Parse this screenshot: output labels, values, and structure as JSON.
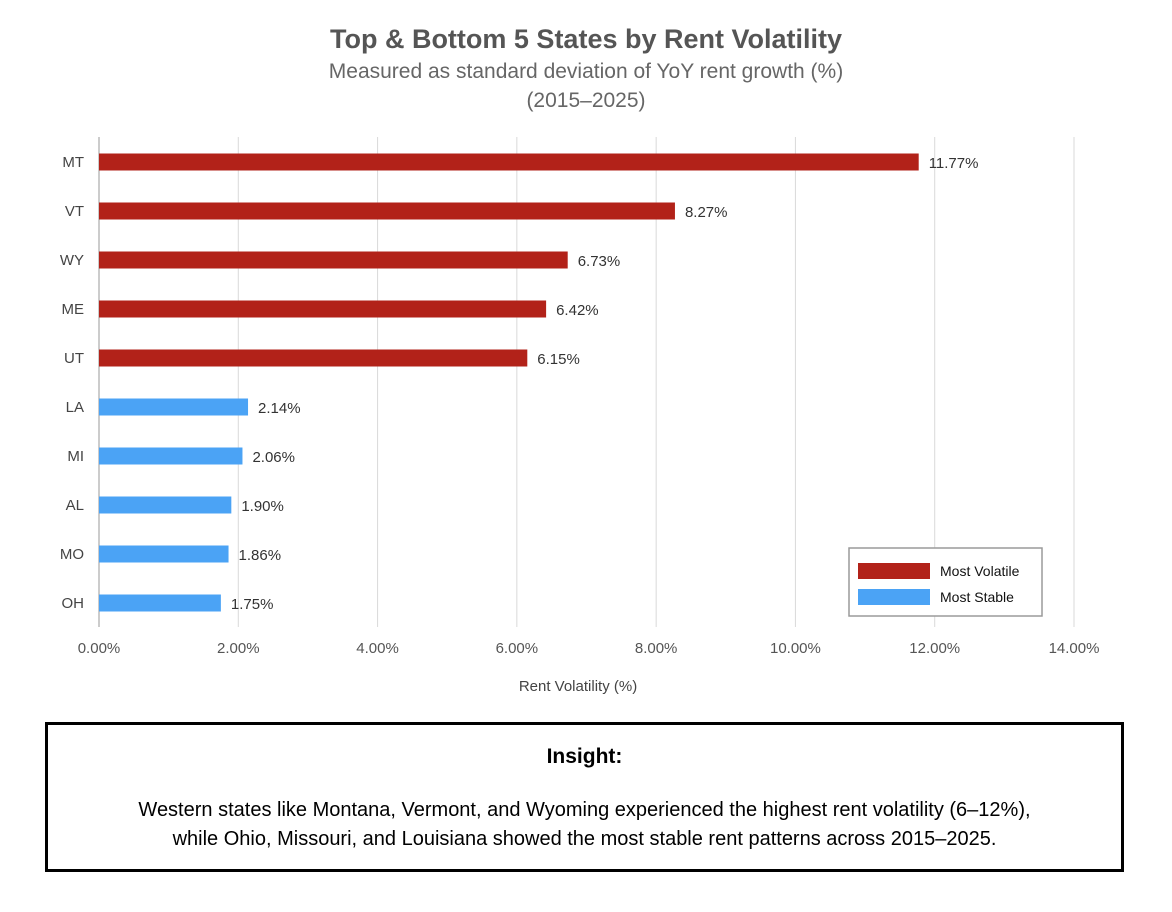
{
  "chart_data": {
    "type": "bar",
    "orientation": "horizontal",
    "title": "Top & Bottom 5 States by Rent Volatility",
    "subtitle": [
      "Measured as standard deviation of YoY rent growth (%)",
      "(2015–2025)"
    ],
    "xlabel": "Rent Volatility (%)",
    "ylabel": "",
    "xlim": [
      0,
      14
    ],
    "xticks": [
      "0.00%",
      "2.00%",
      "4.00%",
      "6.00%",
      "8.00%",
      "10.00%",
      "12.00%",
      "14.00%"
    ],
    "grid": "vertical",
    "legend_position": "bottom-right",
    "categories": [
      "MT",
      "VT",
      "WY",
      "ME",
      "UT",
      "LA",
      "MI",
      "AL",
      "MO",
      "OH"
    ],
    "values": [
      11.77,
      8.27,
      6.73,
      6.42,
      6.15,
      2.14,
      2.06,
      1.9,
      1.86,
      1.75
    ],
    "data_labels": [
      "11.77%",
      "8.27%",
      "6.73%",
      "6.42%",
      "6.15%",
      "2.14%",
      "2.06%",
      "1.90%",
      "1.86%",
      "1.75%"
    ],
    "groups": [
      "Most Volatile",
      "Most Volatile",
      "Most Volatile",
      "Most Volatile",
      "Most Volatile",
      "Most Stable",
      "Most Stable",
      "Most Stable",
      "Most Stable",
      "Most Stable"
    ],
    "legend": [
      {
        "name": "Most Volatile",
        "color": "#b22219"
      },
      {
        "name": "Most Stable",
        "color": "#4ba3f5"
      }
    ]
  },
  "insight": {
    "title": "Insight:",
    "line1": "Western states like Montana, Vermont, and Wyoming experienced the highest rent volatility (6–12%),",
    "line2": "while Ohio, Missouri, and Louisiana showed the most stable rent patterns across 2015–2025."
  }
}
